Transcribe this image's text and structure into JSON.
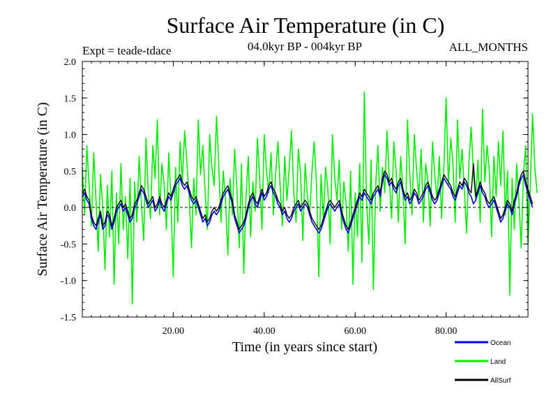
{
  "chart_data": {
    "type": "line",
    "title": "Surface Air Temperature (in C)",
    "subtitle_left": "Expt = teade-tdace",
    "subtitle_center": "04.0kyr BP - 004kyr BP",
    "subtitle_right": "ALL_MONTHS",
    "xlabel": "Time (in years since start)",
    "ylabel": "Surface Air Temperature (in C)",
    "xlim": [
      0,
      98
    ],
    "ylim": [
      -1.5,
      2.0
    ],
    "xticks": [
      20,
      40,
      60,
      80
    ],
    "xtick_labels": [
      "20.00",
      "40.00",
      "60.00",
      "80.00"
    ],
    "yticks": [
      -1.5,
      -1.0,
      -0.5,
      0.0,
      0.5,
      1.0,
      1.5,
      2.0
    ],
    "ytick_labels": [
      "-1.5",
      "-1.0",
      "-0.5",
      "0.0",
      "0.5",
      "1.0",
      "1.5",
      "2.0"
    ],
    "zero_line": true,
    "x_start": 0,
    "x_step": 0.5,
    "series": [
      {
        "name": "Land",
        "color": "#00ee00",
        "values": [
          0.55,
          -0.1,
          0.85,
          0.3,
          -0.25,
          0.75,
          0.1,
          -0.6,
          0.45,
          0.0,
          -0.85,
          0.3,
          -0.4,
          0.5,
          -1.05,
          0.2,
          -0.5,
          0.6,
          -0.3,
          0.15,
          -0.7,
          0.4,
          -1.32,
          0.35,
          -0.2,
          0.7,
          0.05,
          -0.45,
          0.95,
          0.2,
          -0.15,
          0.85,
          0.4,
          1.2,
          -0.1,
          0.6,
          0.3,
          -0.3,
          0.75,
          0.1,
          -0.95,
          0.55,
          -0.2,
          0.9,
          0.35,
          1.05,
          0.6,
          0.15,
          -0.55,
          0.4,
          -0.1,
          1.2,
          0.45,
          0.85,
          0.2,
          -0.3,
          1.0,
          0.55,
          0.3,
          1.25,
          0.6,
          -0.2,
          0.5,
          0.1,
          -0.65,
          0.4,
          -0.1,
          0.8,
          0.25,
          -0.55,
          0.6,
          -0.9,
          0.15,
          0.7,
          -0.4,
          0.35,
          -0.05,
          0.95,
          0.4,
          -0.3,
          1.0,
          0.5,
          0.2,
          0.75,
          -0.1,
          0.45,
          0.9,
          0.3,
          -0.25,
          0.7,
          0.1,
          0.55,
          1.05,
          0.2,
          -0.2,
          0.8,
          0.45,
          -0.45,
          0.6,
          0.15,
          -0.1,
          0.5,
          0.9,
          0.3,
          -0.95,
          0.45,
          -0.15,
          0.55,
          0.25,
          -0.5,
          1.0,
          0.4,
          0.1,
          0.65,
          -0.3,
          0.35,
          0.05,
          -0.6,
          0.5,
          -1.05,
          0.2,
          -0.4,
          0.6,
          -0.75,
          1.58,
          0.1,
          -0.5,
          0.65,
          -1.12,
          0.3,
          0.85,
          -0.05,
          0.55,
          0.2,
          1.05,
          0.4,
          -0.15,
          0.9,
          0.5,
          -0.2,
          0.7,
          0.25,
          -0.5,
          1.2,
          0.45,
          -0.1,
          1.0,
          0.5,
          0.15,
          0.8,
          -0.2,
          0.6,
          0.35,
          -0.25,
          0.9,
          0.45,
          0.1,
          0.7,
          -0.15,
          0.55,
          1.5,
          0.3,
          0.95,
          0.6,
          -0.2,
          1.2,
          0.4,
          0.8,
          0.25,
          -0.35,
          0.6,
          1.1,
          0.45,
          0.1,
          0.65,
          -0.2,
          1.35,
          0.35,
          0.85,
          0.5,
          -0.4,
          0.7,
          0.15,
          0.9,
          0.3,
          1.05,
          -0.1,
          0.5,
          -1.2,
          0.4,
          -0.3,
          0.6,
          0.1,
          -0.55,
          0.45,
          0.85,
          -0.5,
          0.3,
          1.28,
          0.55,
          0.2
        ]
      },
      {
        "name": "Ocean",
        "color": "#0000ee",
        "values": [
          0.15,
          0.2,
          0.1,
          0.05,
          -0.15,
          -0.25,
          -0.3,
          -0.2,
          -0.1,
          -0.3,
          -0.25,
          -0.1,
          -0.15,
          -0.3,
          -0.2,
          -0.05,
          0.0,
          0.05,
          -0.05,
          0.0,
          -0.1,
          -0.2,
          -0.15,
          0.0,
          0.05,
          0.15,
          0.25,
          0.2,
          0.1,
          0.0,
          0.05,
          0.1,
          -0.05,
          0.0,
          0.1,
          0.0,
          -0.05,
          0.05,
          0.15,
          0.1,
          0.2,
          0.3,
          0.35,
          0.4,
          0.3,
          0.25,
          0.3,
          0.2,
          0.1,
          0.05,
          0.1,
          0.0,
          -0.1,
          -0.2,
          -0.15,
          -0.25,
          -0.2,
          -0.1,
          -0.05,
          -0.1,
          -0.05,
          0.05,
          0.15,
          0.2,
          0.25,
          0.15,
          0.05,
          -0.15,
          -0.25,
          -0.35,
          -0.3,
          -0.25,
          -0.15,
          0.0,
          0.1,
          0.15,
          0.05,
          0.0,
          0.1,
          0.2,
          0.1,
          0.15,
          0.25,
          0.3,
          0.2,
          0.15,
          0.05,
          0.0,
          -0.1,
          -0.05,
          -0.15,
          -0.2,
          -0.15,
          -0.05,
          0.0,
          0.05,
          -0.05,
          0.0,
          0.05,
          0.0,
          -0.1,
          -0.2,
          -0.25,
          -0.3,
          -0.35,
          -0.3,
          -0.2,
          -0.1,
          0.0,
          0.05,
          0.0,
          -0.05,
          0.0,
          0.05,
          -0.1,
          -0.2,
          -0.3,
          -0.35,
          -0.25,
          -0.15,
          -0.05,
          0.05,
          0.15,
          0.1,
          0.2,
          0.15,
          0.1,
          0.05,
          0.15,
          0.2,
          0.25,
          0.15,
          0.35,
          0.45,
          0.4,
          0.3,
          0.35,
          0.25,
          0.2,
          0.3,
          0.35,
          0.2,
          0.1,
          0.15,
          0.05,
          0.1,
          0.2,
          0.15,
          0.05,
          0.1,
          0.15,
          0.25,
          0.3,
          0.2,
          0.1,
          0.05,
          0.1,
          0.2,
          0.3,
          0.4,
          0.35,
          0.3,
          0.25,
          0.15,
          0.1,
          0.2,
          0.3,
          0.25,
          0.35,
          0.3,
          0.2,
          0.15,
          0.05,
          0.1,
          0.2,
          0.3,
          0.2,
          0.15,
          0.05,
          0.0,
          0.05,
          0.1,
          0.0,
          -0.1,
          -0.2,
          -0.15,
          -0.05,
          0.05,
          0.0,
          -0.1,
          0.05,
          0.15,
          0.3,
          0.4,
          0.45,
          0.3,
          0.2,
          0.1,
          0.0
        ]
      },
      {
        "name": "AllSurf",
        "color": "#000000",
        "values": [
          0.2,
          0.25,
          0.15,
          0.1,
          -0.1,
          -0.2,
          -0.25,
          -0.15,
          -0.05,
          -0.25,
          -0.2,
          -0.05,
          -0.1,
          -0.25,
          -0.15,
          0.0,
          0.05,
          0.1,
          0.0,
          0.05,
          -0.05,
          -0.15,
          -0.1,
          0.05,
          0.1,
          0.2,
          0.3,
          0.25,
          0.15,
          0.05,
          0.1,
          0.15,
          0.0,
          0.05,
          0.15,
          0.05,
          0.0,
          0.1,
          0.2,
          0.15,
          0.25,
          0.35,
          0.4,
          0.45,
          0.35,
          0.3,
          0.35,
          0.25,
          0.15,
          0.1,
          0.15,
          0.05,
          -0.05,
          -0.15,
          -0.1,
          -0.2,
          -0.15,
          -0.05,
          0.0,
          -0.05,
          0.0,
          0.1,
          0.2,
          0.25,
          0.3,
          0.2,
          0.1,
          -0.1,
          -0.2,
          -0.3,
          -0.25,
          -0.2,
          -0.1,
          0.05,
          0.15,
          0.2,
          0.1,
          0.05,
          0.15,
          0.25,
          0.15,
          0.2,
          0.3,
          0.35,
          0.25,
          0.2,
          0.1,
          0.05,
          -0.05,
          0.0,
          -0.1,
          -0.15,
          -0.1,
          0.0,
          0.05,
          0.1,
          0.0,
          0.05,
          0.1,
          0.05,
          -0.05,
          -0.15,
          -0.2,
          -0.25,
          -0.3,
          -0.25,
          -0.15,
          -0.05,
          0.05,
          0.1,
          0.05,
          0.0,
          0.05,
          0.1,
          -0.05,
          -0.15,
          -0.25,
          -0.3,
          -0.2,
          -0.1,
          0.0,
          0.1,
          0.2,
          0.15,
          0.25,
          0.2,
          0.15,
          0.1,
          0.2,
          0.25,
          0.3,
          0.2,
          0.4,
          0.5,
          0.45,
          0.35,
          0.4,
          0.3,
          0.25,
          0.35,
          0.4,
          0.25,
          0.15,
          0.2,
          0.1,
          0.15,
          0.25,
          0.2,
          0.1,
          0.15,
          0.2,
          0.3,
          0.35,
          0.25,
          0.15,
          0.1,
          0.15,
          0.25,
          0.35,
          0.45,
          0.4,
          0.35,
          0.3,
          0.2,
          0.15,
          0.25,
          0.35,
          0.3,
          0.4,
          0.35,
          0.25,
          0.2,
          0.6,
          0.15,
          0.25,
          0.35,
          0.25,
          0.2,
          0.1,
          0.05,
          0.1,
          0.15,
          0.05,
          -0.05,
          -0.15,
          -0.1,
          0.0,
          0.1,
          0.05,
          -0.05,
          0.1,
          0.2,
          0.35,
          0.45,
          0.5,
          0.35,
          0.25,
          0.15,
          0.05
        ]
      }
    ],
    "legend": [
      "Ocean",
      "Land",
      "AllSurf"
    ],
    "legend_position": "bottom-right"
  }
}
